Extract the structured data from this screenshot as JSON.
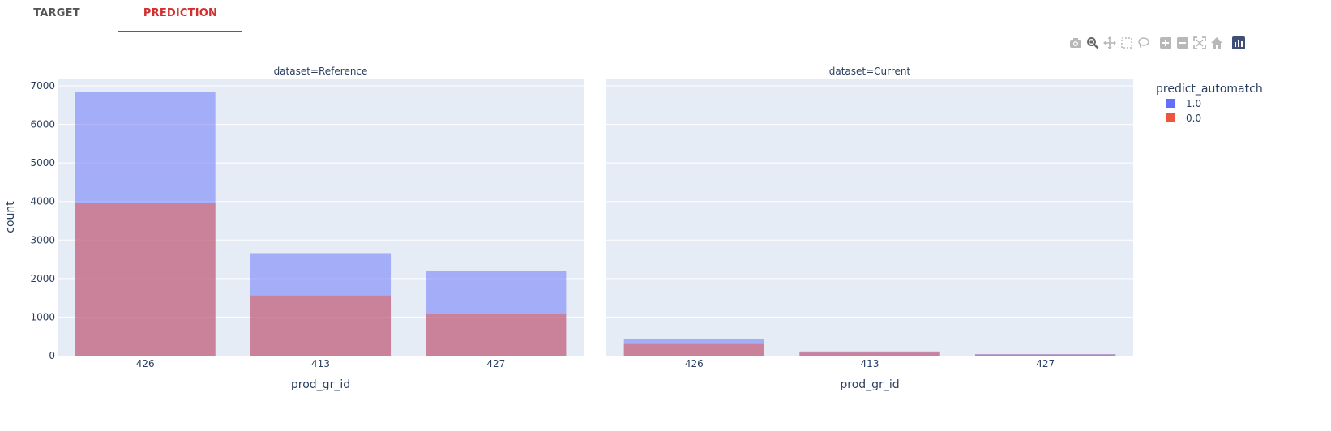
{
  "tabs": [
    {
      "label": "TARGET",
      "active": false
    },
    {
      "label": "PREDICTION",
      "active": true
    }
  ],
  "colors": {
    "series_1": "#636efa",
    "series_0": "#ef553b",
    "accent": "#d32f2f",
    "plot_bg": "#e5ecf6"
  },
  "modebar": [
    "camera-icon",
    "zoom-icon",
    "pan-icon",
    "box-select-icon",
    "lasso-icon",
    "zoom-in-icon",
    "zoom-out-icon",
    "autoscale-icon",
    "reset-axes-icon",
    "plotly-logo-icon"
  ],
  "chart_data": {
    "type": "bar",
    "barmode": "overlay",
    "xlabel": "prod_gr_id",
    "ylabel": "count",
    "ylim": [
      0,
      7000
    ],
    "yticks": [
      0,
      1000,
      2000,
      3000,
      4000,
      5000,
      6000,
      7000
    ],
    "grid": true,
    "legend": {
      "title": "predict_automatch",
      "placement": "top-right"
    },
    "categories": [
      "426",
      "413",
      "427"
    ],
    "panels": [
      {
        "title": "dataset=Reference",
        "series": [
          {
            "name": "1.0",
            "values": [
              6850,
              2660,
              2190
            ]
          },
          {
            "name": "0.0",
            "values": [
              3960,
              1560,
              1090
            ]
          }
        ]
      },
      {
        "title": "dataset=Current",
        "series": [
          {
            "name": "1.0",
            "values": [
              430,
              110,
              40
            ]
          },
          {
            "name": "0.0",
            "values": [
              320,
              80,
              30
            ]
          }
        ]
      }
    ]
  }
}
